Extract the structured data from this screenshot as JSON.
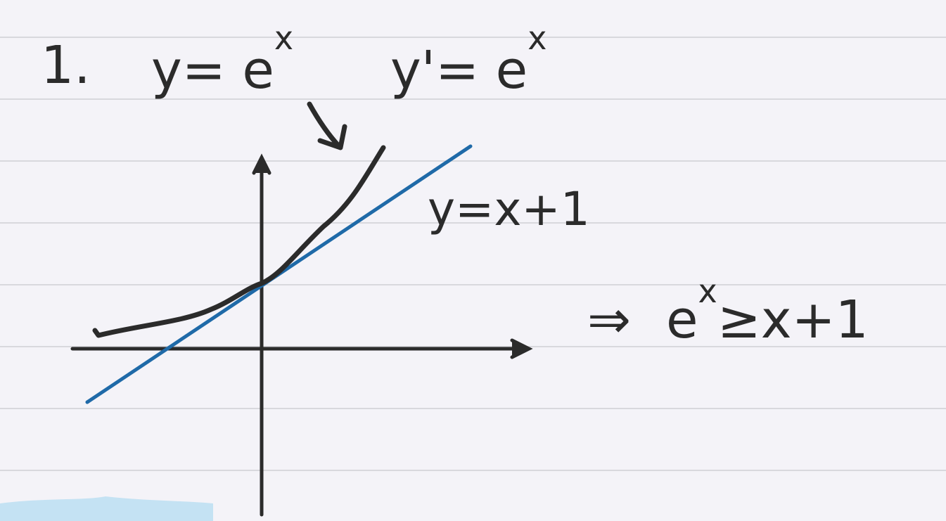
{
  "note": {
    "number": "1.",
    "equations": [
      {
        "base": "y= e",
        "exponent": "x"
      },
      {
        "base": "y'= e",
        "exponent": "x"
      }
    ],
    "line_label": "y=x+1",
    "conclusion": {
      "arrow": "⇒",
      "base": "e",
      "exponent": "x",
      "relation": "≥x+1"
    }
  }
}
